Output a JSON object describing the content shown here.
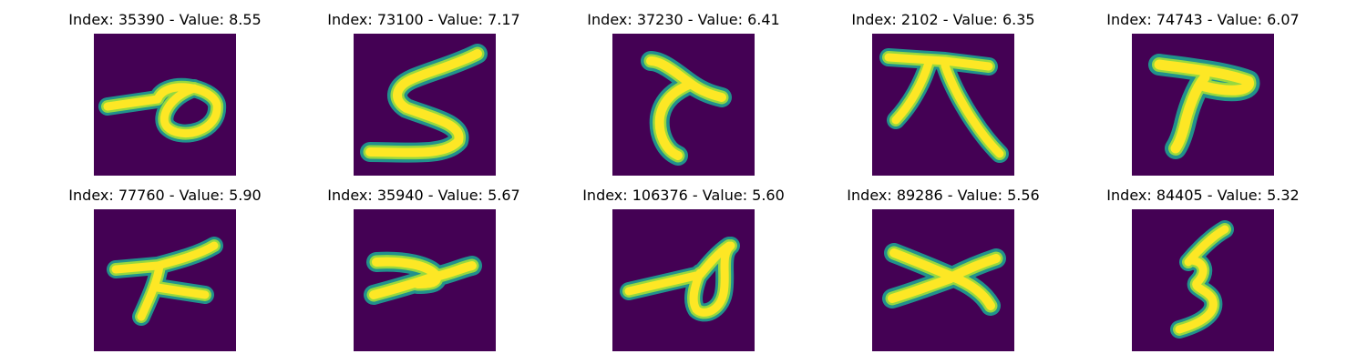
{
  "colors": {
    "background": "#440154",
    "stroke_core": "#fde725",
    "stroke_mid": "#95d840",
    "stroke_edge": "#21918c"
  },
  "figures": [
    {
      "title": "Index: 35390 - Value: 8.55",
      "glyph": "loop-with-tail"
    },
    {
      "title": "Index: 73100 - Value: 7.17",
      "glyph": "five"
    },
    {
      "title": "Index: 37230 - Value: 6.41",
      "glyph": "curved-seven"
    },
    {
      "title": "Index: 2102 - Value: 6.35",
      "glyph": "bar-with-legs"
    },
    {
      "title": "Index: 74743 - Value: 6.07",
      "glyph": "t-shape"
    },
    {
      "title": "Index: 77760 - Value: 5.90",
      "glyph": "crossed-strokes"
    },
    {
      "title": "Index: 35940 - Value: 5.67",
      "glyph": "sideways-y"
    },
    {
      "title": "Index: 106376 - Value: 5.60",
      "glyph": "loop-with-tail"
    },
    {
      "title": "Index: 89286 - Value: 5.56",
      "glyph": "sideways-x"
    },
    {
      "title": "Index: 84405 - Value: 5.32",
      "glyph": "five"
    }
  ]
}
